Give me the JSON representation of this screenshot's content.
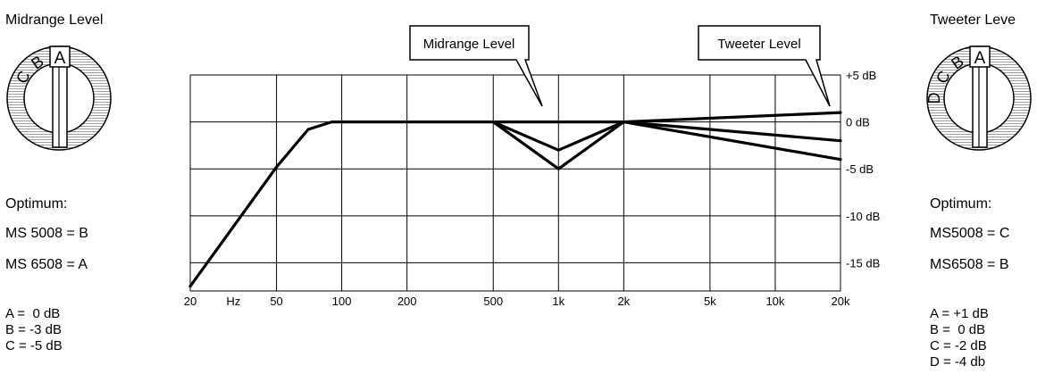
{
  "midrange_panel": {
    "title": "Midrange Level",
    "knob_letters": [
      "A",
      "B",
      "C"
    ],
    "selected_letter": "A",
    "optimum_heading": "Optimum:",
    "optimum_lines": [
      "MS 5008 = B",
      "MS 6508 = A"
    ],
    "settings": [
      "A =  0 dB",
      "B = -3 dB",
      "C = -5 dB"
    ]
  },
  "tweeter_panel": {
    "title": "Tweeter Leve",
    "knob_letters": [
      "A",
      "B",
      "C",
      "D"
    ],
    "selected_letter": "A",
    "optimum_heading": "Optimum:",
    "optimum_lines": [
      "MS5008 = C",
      "MS6508 = B"
    ],
    "settings": [
      "A = +1 dB",
      "B =  0 dB",
      "C = -2 dB",
      "D = -4 db"
    ]
  },
  "callouts": {
    "midrange": "Midrange Level",
    "tweeter": "Tweeter Level"
  },
  "chart_data": {
    "type": "line",
    "x_scale": "log",
    "x_ticks": [
      20,
      50,
      100,
      200,
      500,
      1000,
      2000,
      5000,
      10000,
      20000
    ],
    "x_tick_labels": [
      "20",
      "50",
      "100",
      "200",
      "500",
      "1k",
      "2k",
      "5k",
      "10k",
      "20k"
    ],
    "x_unit_label": "Hz",
    "y_ticks": [
      5,
      0,
      -5,
      -10,
      -15
    ],
    "y_tick_labels": [
      "+5 dB",
      "0 dB",
      "-5 dB",
      "-10 dB",
      "-15 dB"
    ],
    "ylim": [
      -18,
      5
    ],
    "grid": true,
    "series": [
      {
        "x": [
          20,
          50,
          70,
          90,
          2000,
          20000
        ],
        "y": [
          -17.5,
          -4.8,
          -0.8,
          0,
          0,
          1
        ]
      },
      {
        "x": [
          500,
          1000,
          2000
        ],
        "y": [
          0,
          -3,
          0
        ]
      },
      {
        "x": [
          500,
          1000,
          2000
        ],
        "y": [
          0,
          -5,
          0
        ]
      },
      {
        "x": [
          2000,
          20000
        ],
        "y": [
          0,
          -2
        ]
      },
      {
        "x": [
          2000,
          20000
        ],
        "y": [
          0,
          -4
        ]
      }
    ]
  }
}
